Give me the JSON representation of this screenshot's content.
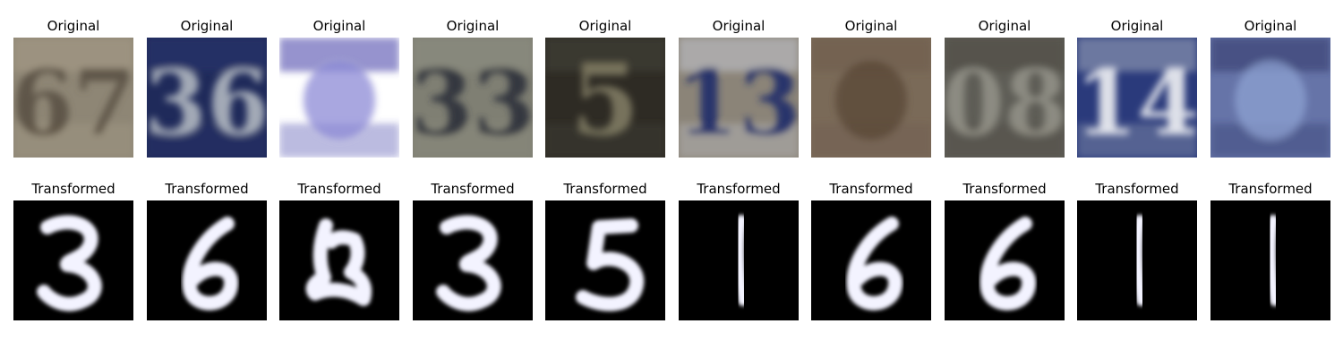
{
  "figure": {
    "rows": [
      {
        "kind": "original",
        "items": [
          {
            "title": "Original",
            "content": "67",
            "bg": "#8e8675",
            "fg": "#5d5446",
            "accent": "#a79d89"
          },
          {
            "title": "Original",
            "content": "36",
            "bg": "#1f2a5a",
            "fg": "#a9b0bb",
            "accent": "#2a3670"
          },
          {
            "title": "Original",
            "content": "",
            "bg": "#ffffff",
            "fg": "#8c89d6",
            "accent": "#3f3ba6"
          },
          {
            "title": "Original",
            "content": "33",
            "bg": "#7f7f73",
            "fg": "#30343d",
            "accent": "#8e8f83"
          },
          {
            "title": "Original",
            "content": "5",
            "bg": "#2e2b24",
            "fg": "#7c775f",
            "accent": "#45423a"
          },
          {
            "title": "Original",
            "content": "13",
            "bg": "#8b8478",
            "fg": "#24306b",
            "accent": "#c5c8d1"
          },
          {
            "title": "Original",
            "content": "",
            "bg": "#7a6a58",
            "fg": "#5a4737",
            "accent": "#6e5d4d"
          },
          {
            "title": "Original",
            "content": "08",
            "bg": "#5e5d56",
            "fg": "#8f8e84",
            "accent": "#4f4b45"
          },
          {
            "title": "Original",
            "content": "14",
            "bg": "#2a3a7b",
            "fg": "#e7e9ef",
            "accent": "#a3abbd"
          },
          {
            "title": "Original",
            "content": "",
            "bg": "#6674a8",
            "fg": "#8ea2d2",
            "accent": "#2d3568"
          }
        ]
      },
      {
        "kind": "transformed",
        "items": [
          {
            "title": "Transformed",
            "content": "digit-3"
          },
          {
            "title": "Transformed",
            "content": "digit-6"
          },
          {
            "title": "Transformed",
            "content": "blob"
          },
          {
            "title": "Transformed",
            "content": "digit-3"
          },
          {
            "title": "Transformed",
            "content": "digit-5"
          },
          {
            "title": "Transformed",
            "content": "digit-1"
          },
          {
            "title": "Transformed",
            "content": "digit-6"
          },
          {
            "title": "Transformed",
            "content": "digit-6"
          },
          {
            "title": "Transformed",
            "content": "digit-1"
          },
          {
            "title": "Transformed",
            "content": "digit-1"
          }
        ]
      }
    ]
  }
}
